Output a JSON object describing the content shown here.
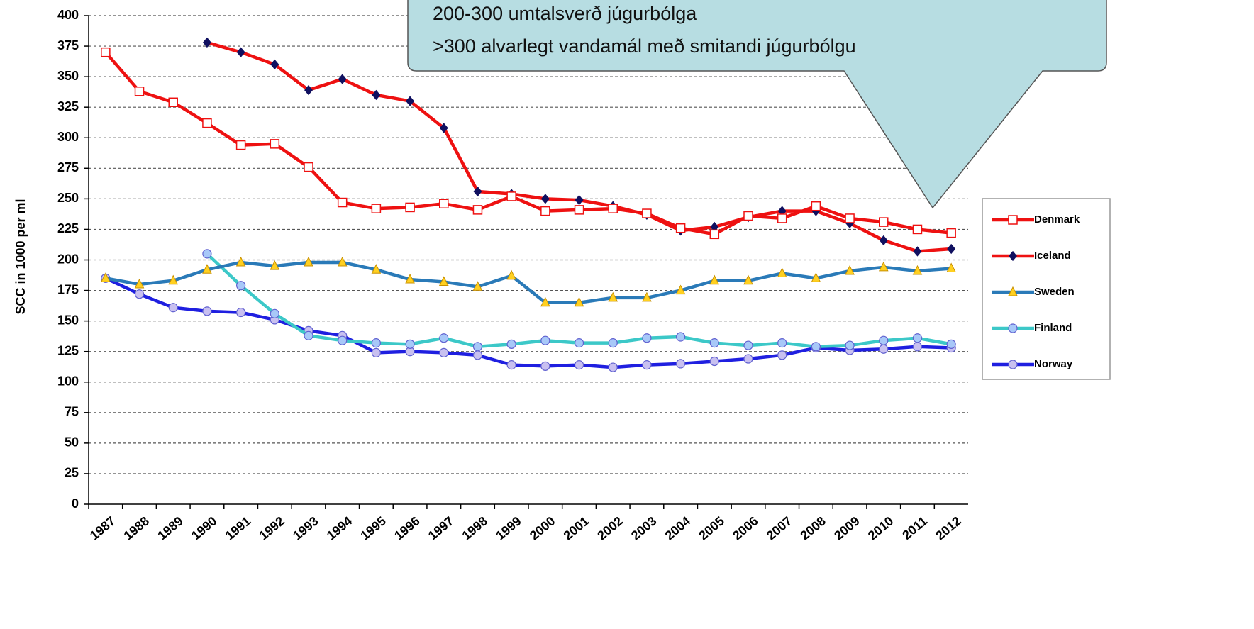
{
  "chart_data": {
    "type": "line",
    "y_label": "SCC in 1000 per ml",
    "categories": [
      "1987",
      "1988",
      "1989",
      "1990",
      "1991",
      "1992",
      "1993",
      "1994",
      "1995",
      "1996",
      "1997",
      "1998",
      "1999",
      "2000",
      "2001",
      "2002",
      "2003",
      "2004",
      "2005",
      "2006",
      "2007",
      "2008",
      "2009",
      "2010",
      "2011",
      "2012"
    ],
    "ylim": [
      0,
      400
    ],
    "yticks": [
      0,
      25,
      50,
      75,
      100,
      125,
      150,
      175,
      200,
      225,
      250,
      275,
      300,
      325,
      350,
      375,
      400
    ],
    "grid": true,
    "legend": "right",
    "series": [
      {
        "name": "Norway",
        "color": "#1f1fe0",
        "marker": "circle",
        "marker_color": "#c8c0f0",
        "values": [
          185,
          172,
          161,
          158,
          157,
          151,
          142,
          138,
          124,
          125,
          124,
          122,
          114,
          113,
          114,
          112,
          114,
          115,
          117,
          119,
          122,
          128,
          126,
          127,
          129,
          128
        ]
      },
      {
        "name": "Finland",
        "color": "#3cc8c8",
        "marker": "circle",
        "marker_color": "#a8c8f8",
        "values": [
          null,
          null,
          null,
          205,
          179,
          156,
          138,
          134,
          132,
          131,
          136,
          129,
          131,
          134,
          132,
          132,
          136,
          137,
          132,
          130,
          132,
          129,
          130,
          134,
          136,
          131
        ]
      },
      {
        "name": "Sweden",
        "color": "#2a7ab8",
        "marker": "triangle",
        "marker_color": "#ffd020",
        "values": [
          185,
          180,
          183,
          192,
          198,
          195,
          198,
          198,
          192,
          184,
          182,
          178,
          187,
          165,
          165,
          169,
          169,
          175,
          183,
          183,
          189,
          185,
          191,
          194,
          191,
          193
        ]
      },
      {
        "name": "Iceland",
        "color": "#ee1111",
        "marker": "diamond",
        "marker_color": "#101060",
        "values": [
          null,
          null,
          null,
          378,
          370,
          360,
          339,
          348,
          335,
          330,
          308,
          256,
          254,
          250,
          249,
          244,
          237,
          224,
          227,
          235,
          240,
          240,
          230,
          216,
          207,
          209
        ]
      },
      {
        "name": "Denmark",
        "color": "#ee1111",
        "marker": "square",
        "marker_color": "#ffffff",
        "values": [
          370,
          338,
          329,
          312,
          294,
          295,
          276,
          247,
          242,
          243,
          246,
          241,
          252,
          240,
          241,
          242,
          238,
          226,
          221,
          236,
          234,
          244,
          234,
          231,
          225,
          222
        ]
      }
    ],
    "legend_order": [
      "Denmark",
      "Iceland",
      "Sweden",
      "Finland",
      "Norway"
    ],
    "annotations": [
      "200-300 umtalsverð júgurbólga",
      ">300 alvarlegt vandamál með smitandi júgurbólgu"
    ]
  }
}
